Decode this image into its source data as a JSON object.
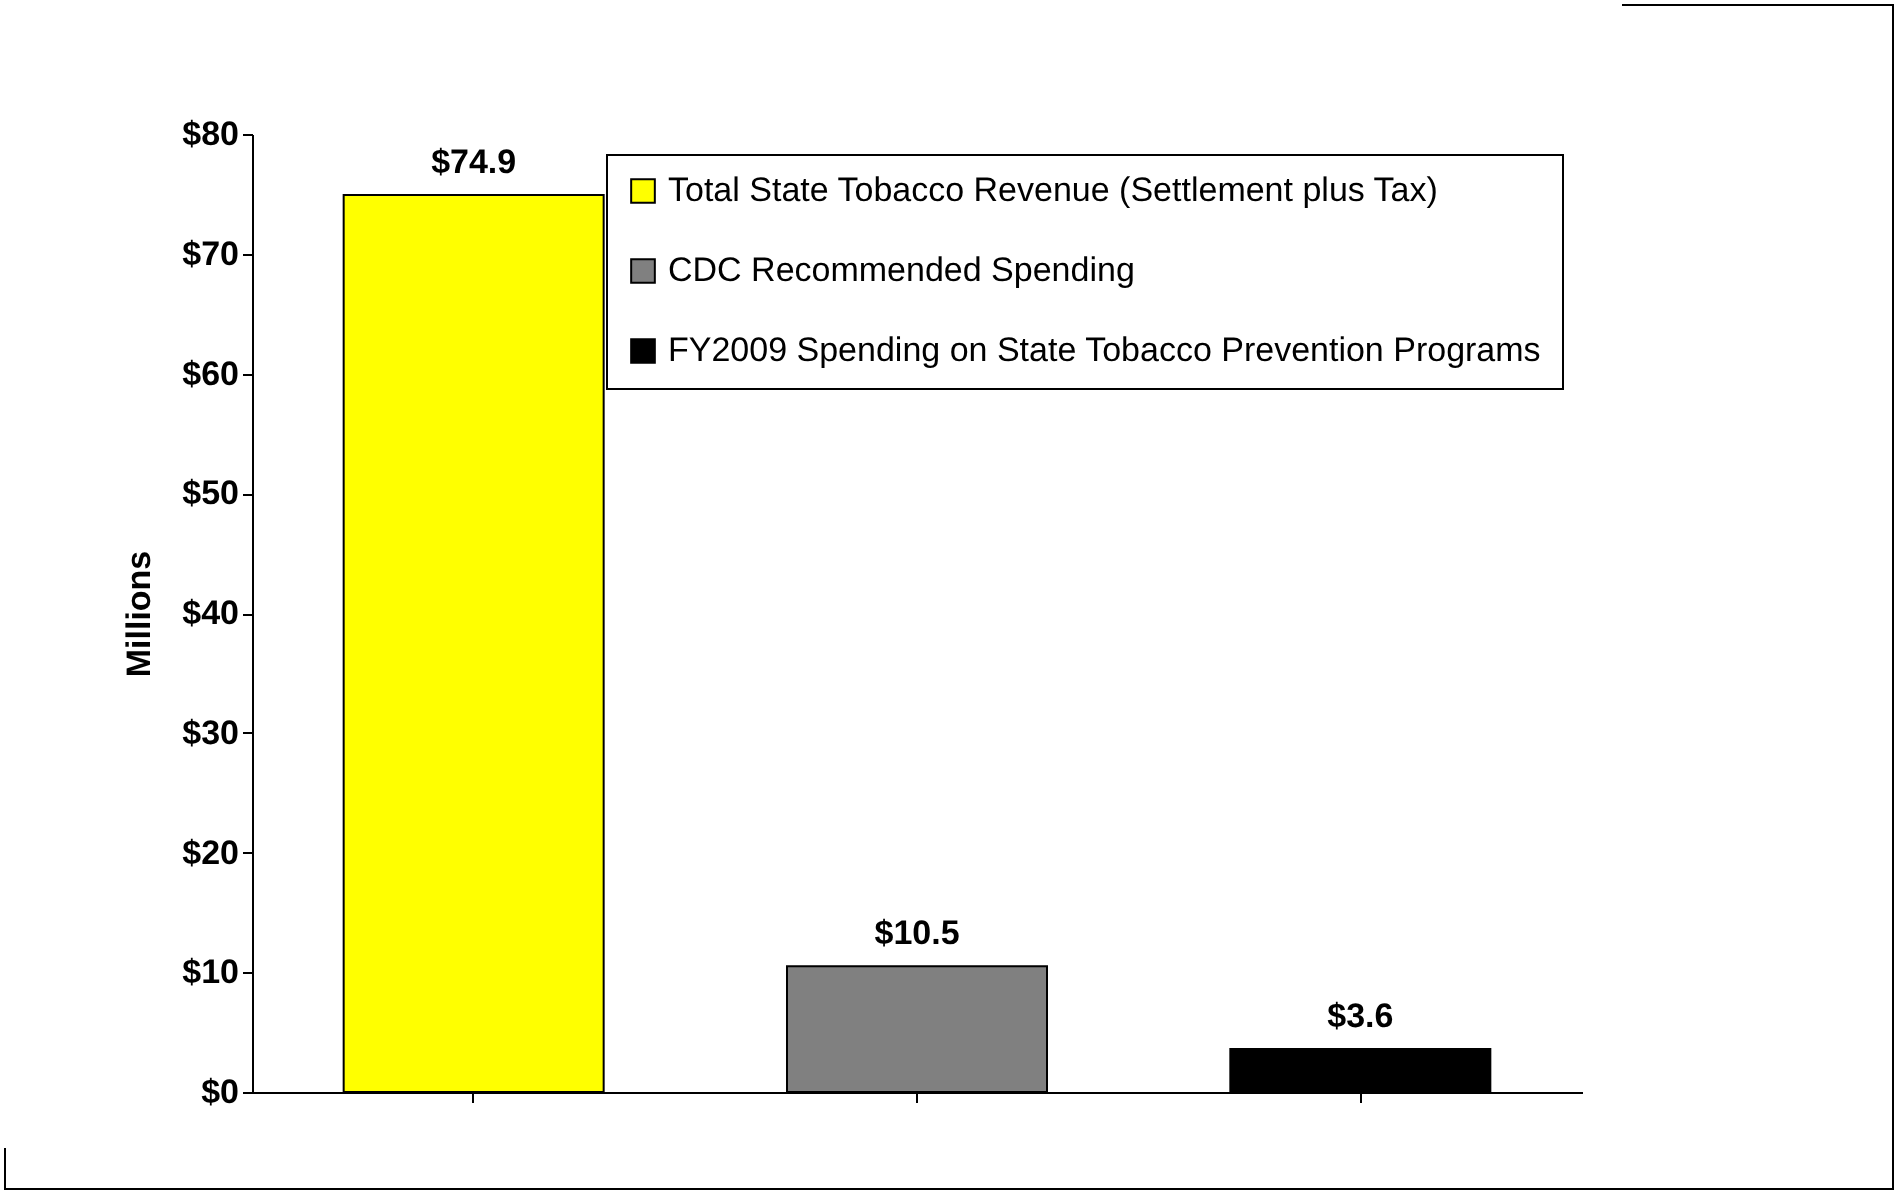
{
  "chart_data": {
    "type": "bar",
    "ylabel": "Millions",
    "categories": [
      null,
      null,
      null
    ],
    "series": [
      {
        "name": "Total State Tobacco Revenue (Settlement plus Tax)",
        "color": "#ffff00",
        "values": [
          74.9,
          null,
          null
        ],
        "value_labels": [
          "$74.9",
          null,
          null
        ]
      },
      {
        "name": "CDC Recommended Spending",
        "color": "#808080",
        "values": [
          null,
          10.5,
          null
        ],
        "value_labels": [
          null,
          "$10.5",
          null
        ]
      },
      {
        "name": "FY2009 Spending on State Tobacco Prevention Programs",
        "color": "#000000",
        "values": [
          null,
          null,
          3.6
        ],
        "value_labels": [
          null,
          null,
          "$3.6"
        ]
      }
    ],
    "ylim": [
      0,
      80
    ],
    "yticks": [
      {
        "value": 0,
        "label": "$0"
      },
      {
        "value": 10,
        "label": "$10"
      },
      {
        "value": 20,
        "label": "$20"
      },
      {
        "value": 30,
        "label": "$30"
      },
      {
        "value": 40,
        "label": "$40"
      },
      {
        "value": 50,
        "label": "$50"
      },
      {
        "value": 60,
        "label": "$60"
      },
      {
        "value": 70,
        "label": "$70"
      },
      {
        "value": 80,
        "label": "$80"
      }
    ],
    "grid": false,
    "legend": "top right"
  }
}
